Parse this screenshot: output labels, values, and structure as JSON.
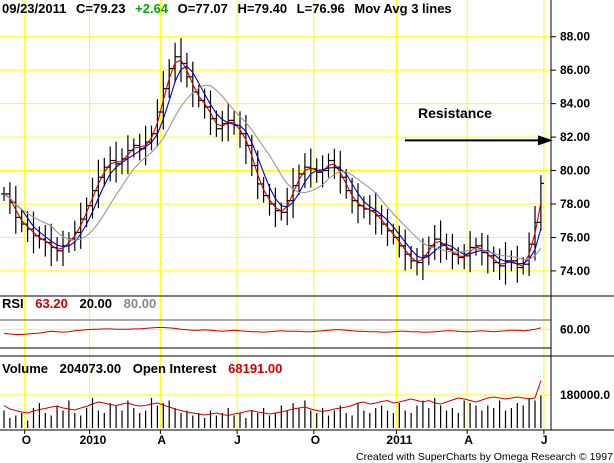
{
  "header": {
    "date": "09/23/2011",
    "close_label": "C=79.23",
    "change": "+2.64",
    "open_label": "O=77.07",
    "high_label": "H=79.40",
    "low_label": "L=76.96",
    "study": "Mov Avg 3 lines"
  },
  "rsi_header": {
    "label": "RSI",
    "value": "63.20",
    "lower": "20.00",
    "upper": "80.00"
  },
  "volume_header": {
    "label": "Volume",
    "value": "204073.00",
    "oi_label": "Open Interest",
    "oi_value": "68191.00"
  },
  "annotation": {
    "text": "Resistance",
    "level": 81.8
  },
  "credit": "Created with SuperCharts by Omega Research © 1997",
  "colors": {
    "grid": "#ffff00",
    "price_bars": "#000000",
    "ma_fast": "#cc0000",
    "ma_mid": "#0000cc",
    "ma_slow": "#999999",
    "rsi_line": "#cc0000",
    "volume_bars": "#000000",
    "open_interest": "#cc0000",
    "change_up": "#00aa00"
  },
  "chart_data": {
    "type": "bar",
    "price_axis": {
      "ticks": [
        "74.00",
        "76.00",
        "78.00",
        "80.00",
        "82.00",
        "84.00",
        "86.00",
        "88.00"
      ],
      "ylim": [
        72.5,
        89.0
      ]
    },
    "rsi_axis": {
      "ticks": [
        "60.00"
      ],
      "ylim": [
        20,
        80
      ]
    },
    "volume_axis": {
      "ticks": [
        "180000.0"
      ]
    },
    "x_labels": [
      "O",
      "2010",
      "A",
      "J",
      "O",
      "2011",
      "A",
      "J"
    ],
    "x_label_weeks": [
      3,
      14,
      26,
      39,
      52,
      66,
      78,
      91
    ],
    "weekly_closes": [
      78.6,
      78.1,
      77.2,
      76.8,
      76.5,
      76.1,
      75.9,
      75.7,
      75.4,
      75.2,
      75.5,
      75.9,
      76.3,
      77.1,
      77.9,
      78.8,
      79.6,
      80.2,
      80.6,
      80.4,
      80.7,
      81.2,
      81.5,
      81.3,
      81.7,
      82.2,
      83.5,
      84.9,
      86.1,
      86.8,
      86.4,
      85.6,
      84.7,
      84.2,
      83.8,
      83.1,
      82.5,
      82.8,
      83.0,
      82.7,
      82.2,
      81.5,
      80.3,
      79.2,
      78.5,
      78.0,
      77.6,
      77.5,
      78.2,
      79.1,
      79.8,
      80.2,
      80.1,
      79.9,
      80.0,
      80.6,
      80.2,
      79.6,
      78.8,
      78.2,
      77.9,
      77.7,
      77.6,
      77.3,
      76.8,
      76.4,
      76.0,
      75.5,
      75.0,
      74.6,
      74.5,
      74.9,
      75.5,
      75.9,
      75.6,
      75.3,
      75.0,
      74.8,
      74.9,
      75.4,
      75.5,
      75.1,
      74.9,
      74.5,
      74.3,
      74.6,
      74.6,
      74.2,
      74.4,
      75.6,
      76.9,
      79.23
    ],
    "rsi_values": [
      51,
      50,
      49,
      49,
      50,
      51,
      52,
      54,
      56,
      55,
      54,
      55,
      57,
      58,
      59,
      60,
      60,
      61,
      61,
      60,
      60,
      60,
      61,
      61,
      62,
      63,
      64,
      64,
      63,
      62,
      60,
      59,
      58,
      58,
      59,
      58,
      57,
      56,
      57,
      58,
      57,
      56,
      55,
      55,
      54,
      55,
      56,
      57,
      56,
      56,
      56,
      55,
      55,
      56,
      57,
      58,
      59,
      59,
      58,
      57,
      56,
      56,
      55,
      55,
      54,
      54,
      55,
      56,
      56,
      55,
      55,
      54,
      54,
      55,
      56,
      57,
      57,
      56,
      55,
      55,
      56,
      57,
      56,
      55,
      56,
      57,
      58,
      58,
      57,
      58,
      60,
      63.2
    ],
    "volume_rel": [
      0.35,
      0.2,
      0.25,
      0.3,
      0.15,
      0.4,
      0.5,
      0.3,
      0.25,
      0.45,
      0.35,
      0.55,
      0.3,
      0.25,
      0.4,
      0.6,
      0.35,
      0.3,
      0.5,
      0.45,
      0.35,
      0.55,
      0.4,
      0.3,
      0.35,
      0.6,
      0.45,
      0.5,
      0.55,
      0.4,
      0.3,
      0.35,
      0.25,
      0.3,
      0.2,
      0.35,
      0.25,
      0.3,
      0.4,
      0.25,
      0.3,
      0.2,
      0.35,
      0.3,
      0.4,
      0.25,
      0.3,
      0.45,
      0.35,
      0.5,
      0.4,
      0.55,
      0.35,
      0.3,
      0.4,
      0.25,
      0.35,
      0.45,
      0.3,
      0.25,
      0.5,
      0.35,
      0.3,
      0.4,
      0.45,
      0.35,
      0.3,
      0.5,
      0.35,
      0.3,
      0.45,
      0.55,
      0.4,
      0.6,
      0.45,
      0.35,
      0.4,
      0.3,
      0.55,
      0.5,
      0.45,
      0.35,
      0.45,
      0.4,
      0.55,
      0.35,
      0.4,
      0.5,
      0.45,
      0.6,
      0.55,
      0.65
    ],
    "open_interest_rel": [
      0.45,
      0.38,
      0.35,
      0.32,
      0.3,
      0.34,
      0.37,
      0.39,
      0.42,
      0.44,
      0.4,
      0.38,
      0.36,
      0.4,
      0.43,
      0.48,
      0.52,
      0.5,
      0.47,
      0.45,
      0.48,
      0.5,
      0.46,
      0.44,
      0.45,
      0.48,
      0.5,
      0.46,
      0.42,
      0.38,
      0.35,
      0.32,
      0.3,
      0.28,
      0.26,
      0.28,
      0.3,
      0.27,
      0.25,
      0.28,
      0.3,
      0.33,
      0.35,
      0.32,
      0.3,
      0.28,
      0.3,
      0.32,
      0.35,
      0.38,
      0.4,
      0.42,
      0.38,
      0.35,
      0.33,
      0.35,
      0.38,
      0.4,
      0.42,
      0.45,
      0.5,
      0.52,
      0.48,
      0.5,
      0.53,
      0.55,
      0.5,
      0.52,
      0.55,
      0.58,
      0.55,
      0.52,
      0.55,
      0.5,
      0.48,
      0.52,
      0.56,
      0.6,
      0.58,
      0.55,
      0.52,
      0.56,
      0.6,
      0.62,
      0.6,
      0.58,
      0.6,
      0.62,
      0.6,
      0.58,
      0.6,
      0.95
    ]
  }
}
